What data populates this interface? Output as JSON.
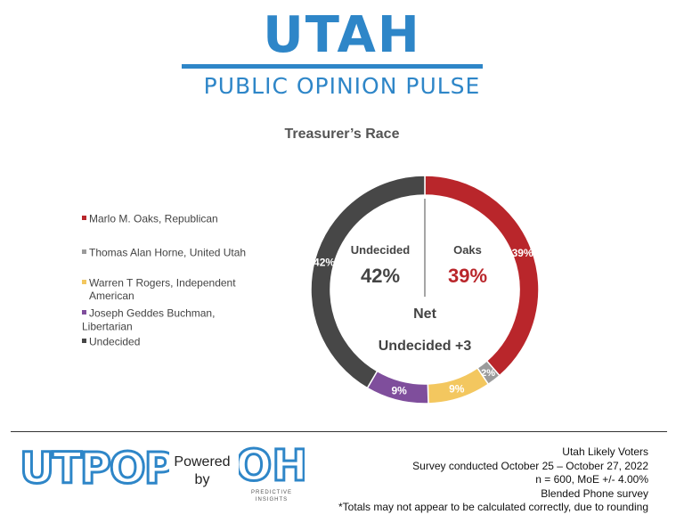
{
  "header": {
    "brand_title": "UTAH",
    "brand_subtitle": "PUBLIC OPINION PULSE"
  },
  "chart_data": {
    "type": "pie",
    "variant": "donut",
    "title": "Treasurer’s  Race",
    "legend_position": "left",
    "series": [
      {
        "name": "Marlo M. Oaks, Republican",
        "value": 39,
        "label": "39%",
        "color": "#b9262b"
      },
      {
        "name": "Thomas Alan Horne, United Utah",
        "value": 2,
        "label": "2%",
        "color": "#9b9b9b"
      },
      {
        "name": "Warren T Rogers, Independent American",
        "value": 9,
        "label": "9%",
        "color": "#f3c75f"
      },
      {
        "name": "Joseph Geddes Buchman, Libertarian",
        "value": 9,
        "label": "9%",
        "color": "#7f4e9c"
      },
      {
        "name": "Undecided",
        "value": 42,
        "label": "42%",
        "color": "#474747"
      }
    ],
    "center": {
      "left_label": "Undecided",
      "left_value": "42%",
      "right_label": "Oaks",
      "right_value": "39%",
      "net_label": "Net",
      "net_value": "Undecided +3"
    }
  },
  "legend_lines": [
    [
      "Marlo M. Oaks, Republican"
    ],
    [
      "Thomas Alan Horne, United Utah"
    ],
    [
      "Warren T Rogers, Independent",
      "American"
    ],
    [
      "Joseph Geddes Buchman, Libertarian"
    ],
    [
      "Undecided"
    ]
  ],
  "footer": {
    "logo_text": "UTPOP",
    "powered_by": [
      "Powered",
      "by"
    ],
    "partner_logo_text": "OH",
    "partner_caption": [
      "PREDICTIVE",
      "INSIGHTS"
    ],
    "methodology": [
      "Utah Likely Voters",
      "Survey conducted October 25 – October 27, 2022",
      "n = 600, MoE +/- 4.00%",
      "Blended Phone survey",
      "*Totals may not appear to be calculated correctly, due to rounding"
    ]
  },
  "colors": {
    "brand_blue": "#2e86c8",
    "oaks_red": "#b9262b",
    "center_text": "#444444"
  }
}
